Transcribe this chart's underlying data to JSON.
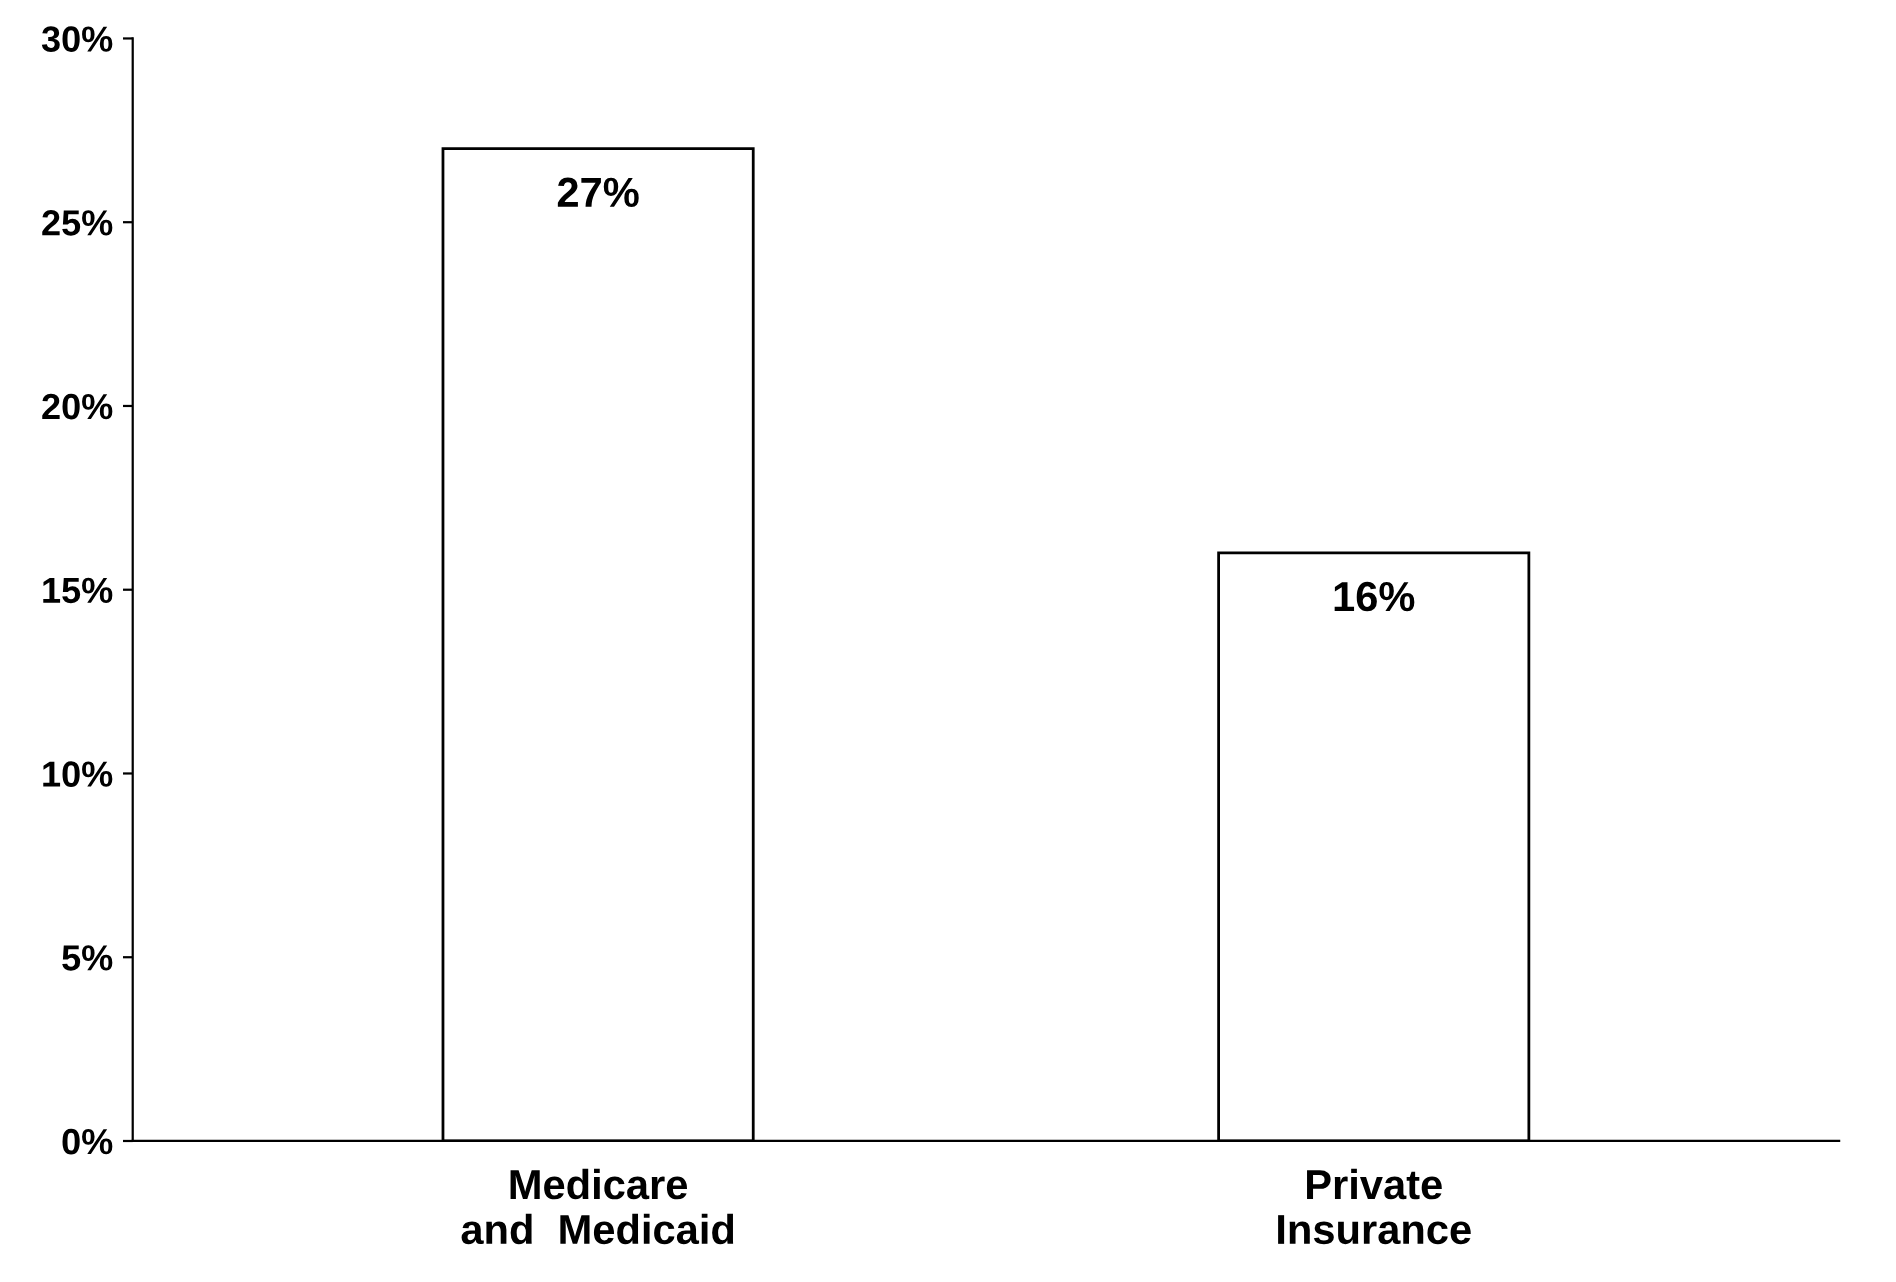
{
  "chart_data": {
    "type": "bar",
    "categories": [
      "Medicare\nand  Medicaid",
      "Private\nInsurance"
    ],
    "values": [
      27,
      16
    ],
    "value_labels": [
      "27%",
      "16%"
    ],
    "color": "#ffffff",
    "ylim": [
      0,
      30
    ],
    "yticks": [
      {
        "value": 0,
        "label": "0%"
      },
      {
        "value": 5,
        "label": "5%"
      },
      {
        "value": 10,
        "label": "10%"
      },
      {
        "value": 15,
        "label": "15%"
      },
      {
        "value": 20,
        "label": "20%"
      },
      {
        "value": 25,
        "label": "25%"
      },
      {
        "value": 30,
        "label": "30%"
      }
    ],
    "grid": false,
    "legend": false
  }
}
